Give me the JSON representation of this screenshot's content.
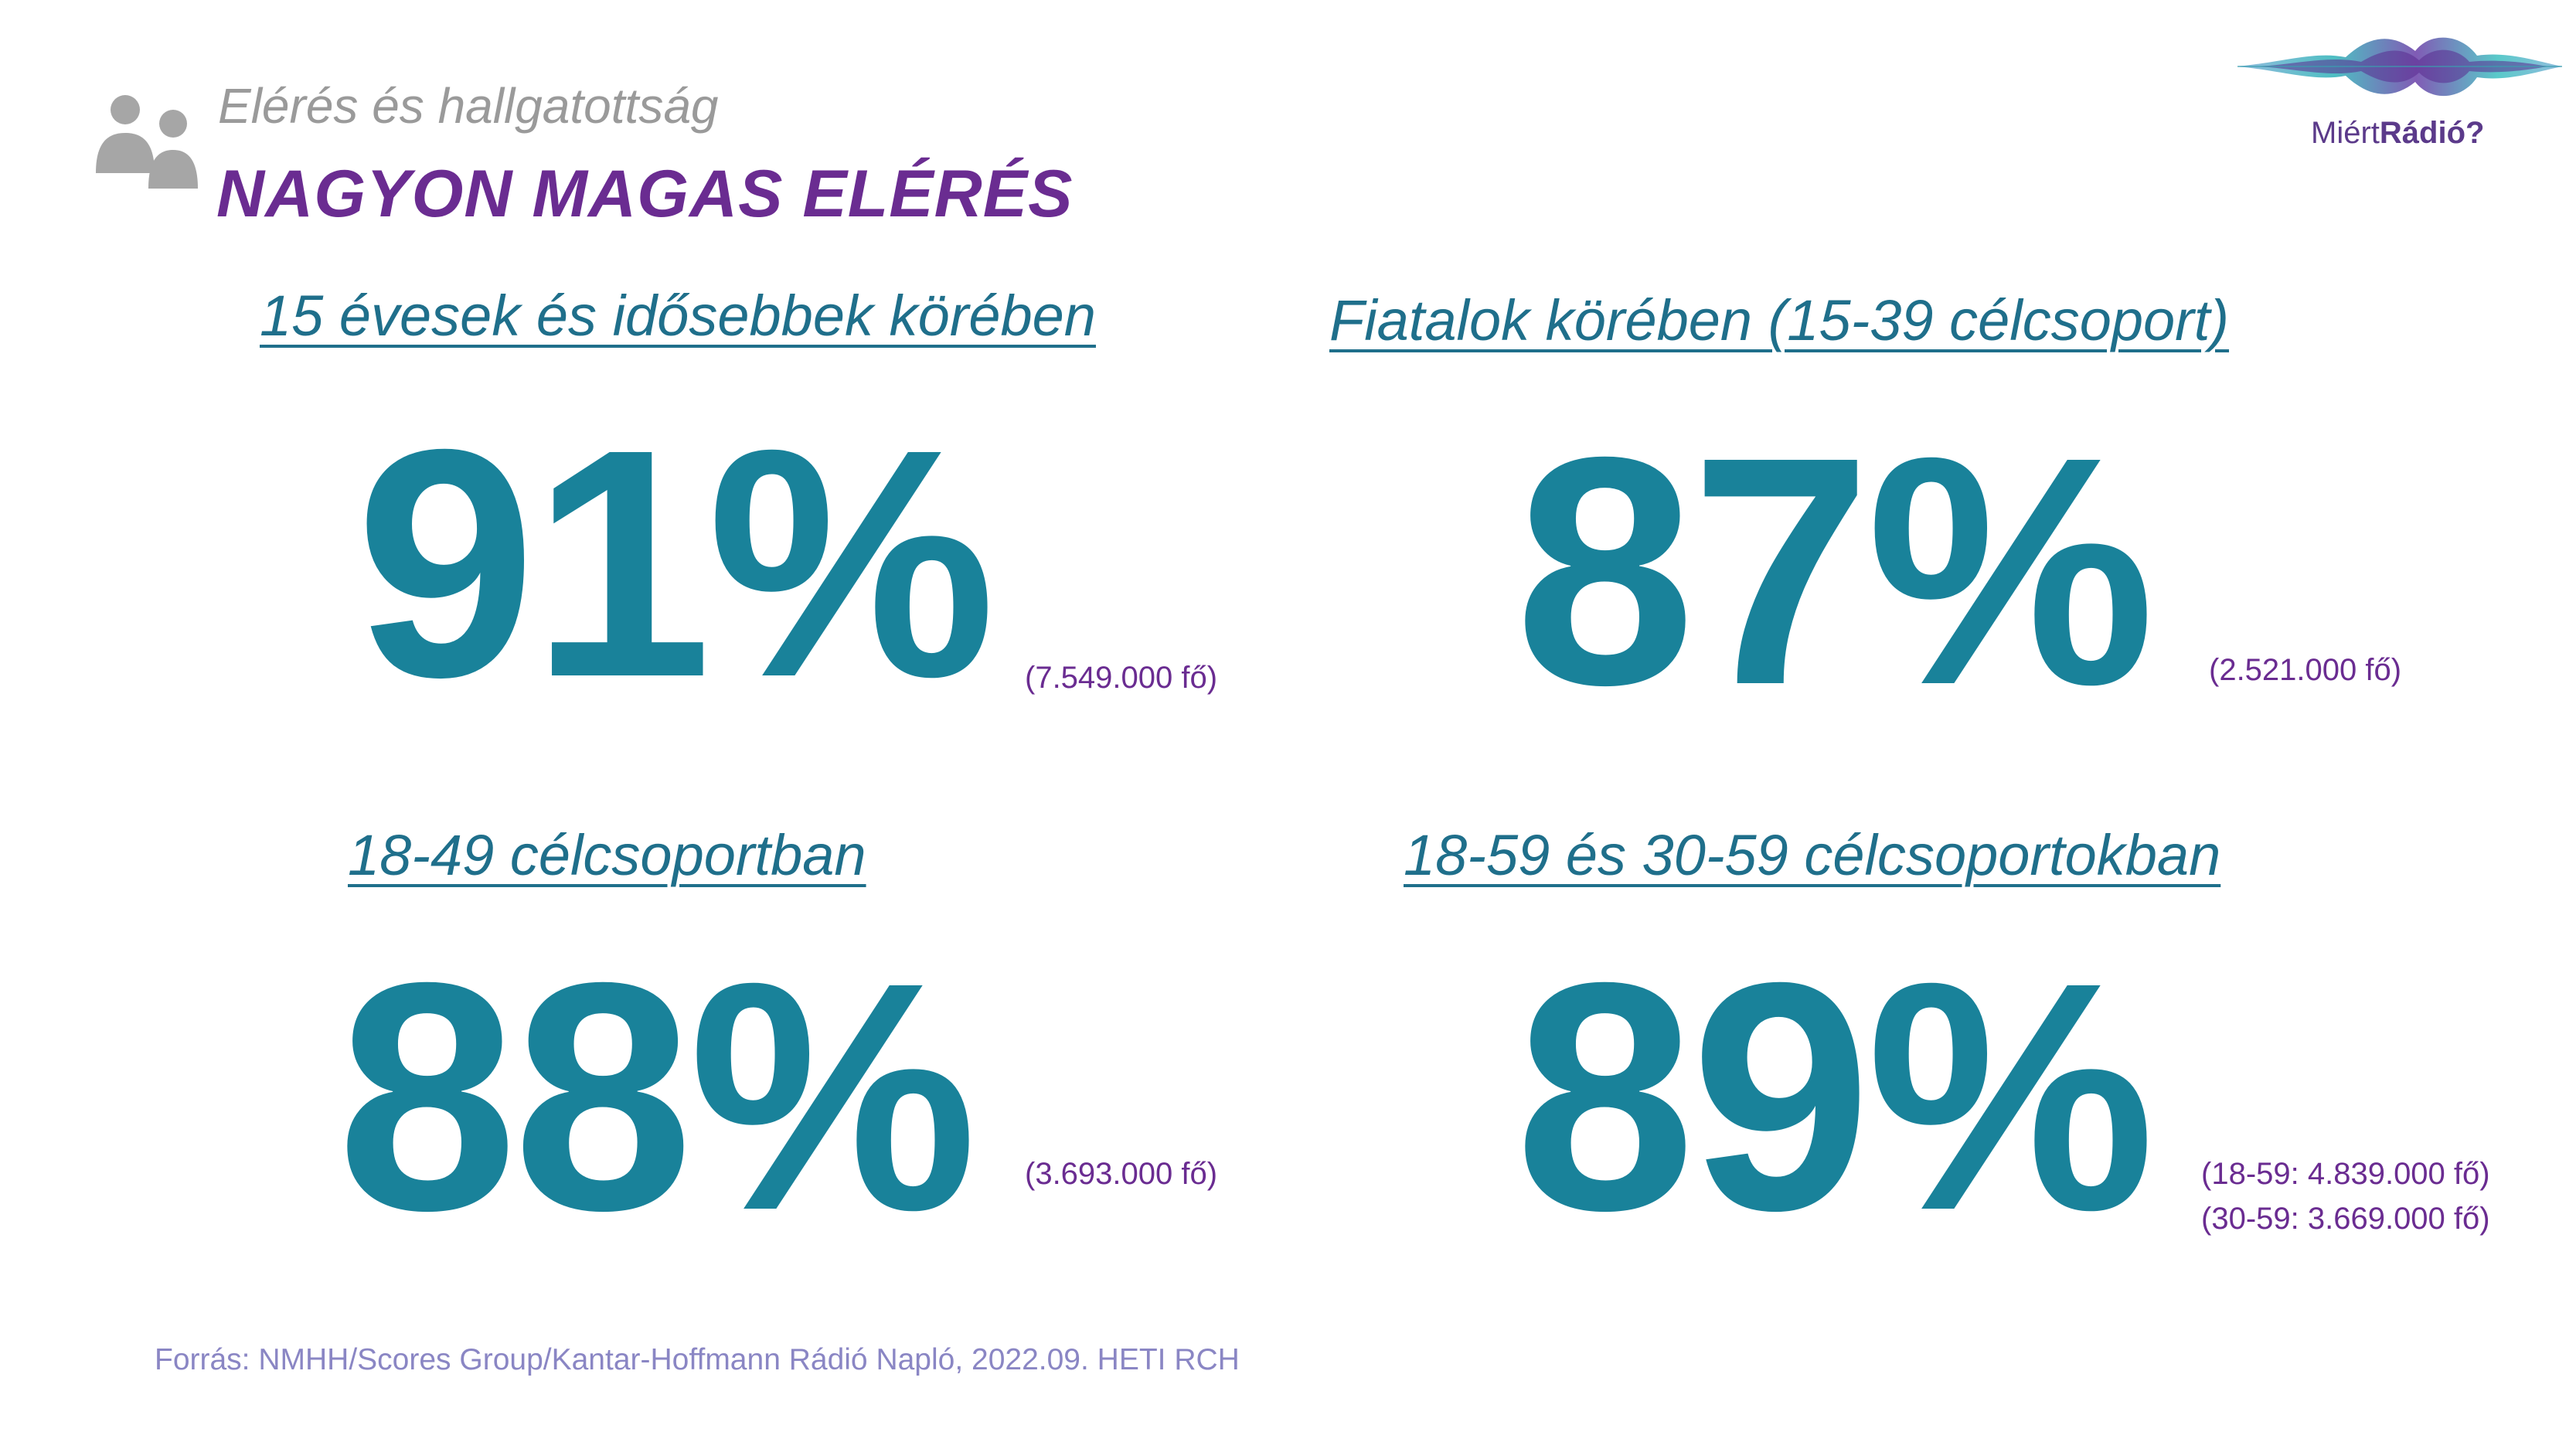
{
  "header": {
    "kicker": "Elérés és hallgatottság",
    "headline": "NAGYON MAGAS ELÉRÉS"
  },
  "logo": {
    "text_part1": "Miért",
    "text_part2": "Rádió?"
  },
  "stats": [
    {
      "heading": "15 évesek és idősebbek körében",
      "value": "91%",
      "note": "(7.549.000 fő)"
    },
    {
      "heading": "Fiatalok körében (15-39 célcsoport)",
      "value": "87%",
      "note": "(2.521.000 fő)"
    },
    {
      "heading": "18-49 célcsoportban",
      "value": "88%",
      "note": "(3.693.000 fő)"
    },
    {
      "heading": "18-59 és 30-59 célcsoportokban",
      "value": "89%",
      "note_line1": "(18-59: 4.839.000 fő)",
      "note_line2": "(30-59: 3.669.000 fő)"
    }
  ],
  "source": "Forrás: NMHH/Scores Group/Kantar-Hoffmann Rádió Napló, 2022.09. HETI RCH",
  "colors": {
    "teal": "#19829a",
    "heading_blue": "#1f6f8b",
    "purple": "#6a2c91",
    "gray": "#9a9a9a",
    "source_lavender": "#8a86c4"
  },
  "icons": {
    "header_icon": "people-icon",
    "logo_icon": "sound-wave-icon"
  }
}
